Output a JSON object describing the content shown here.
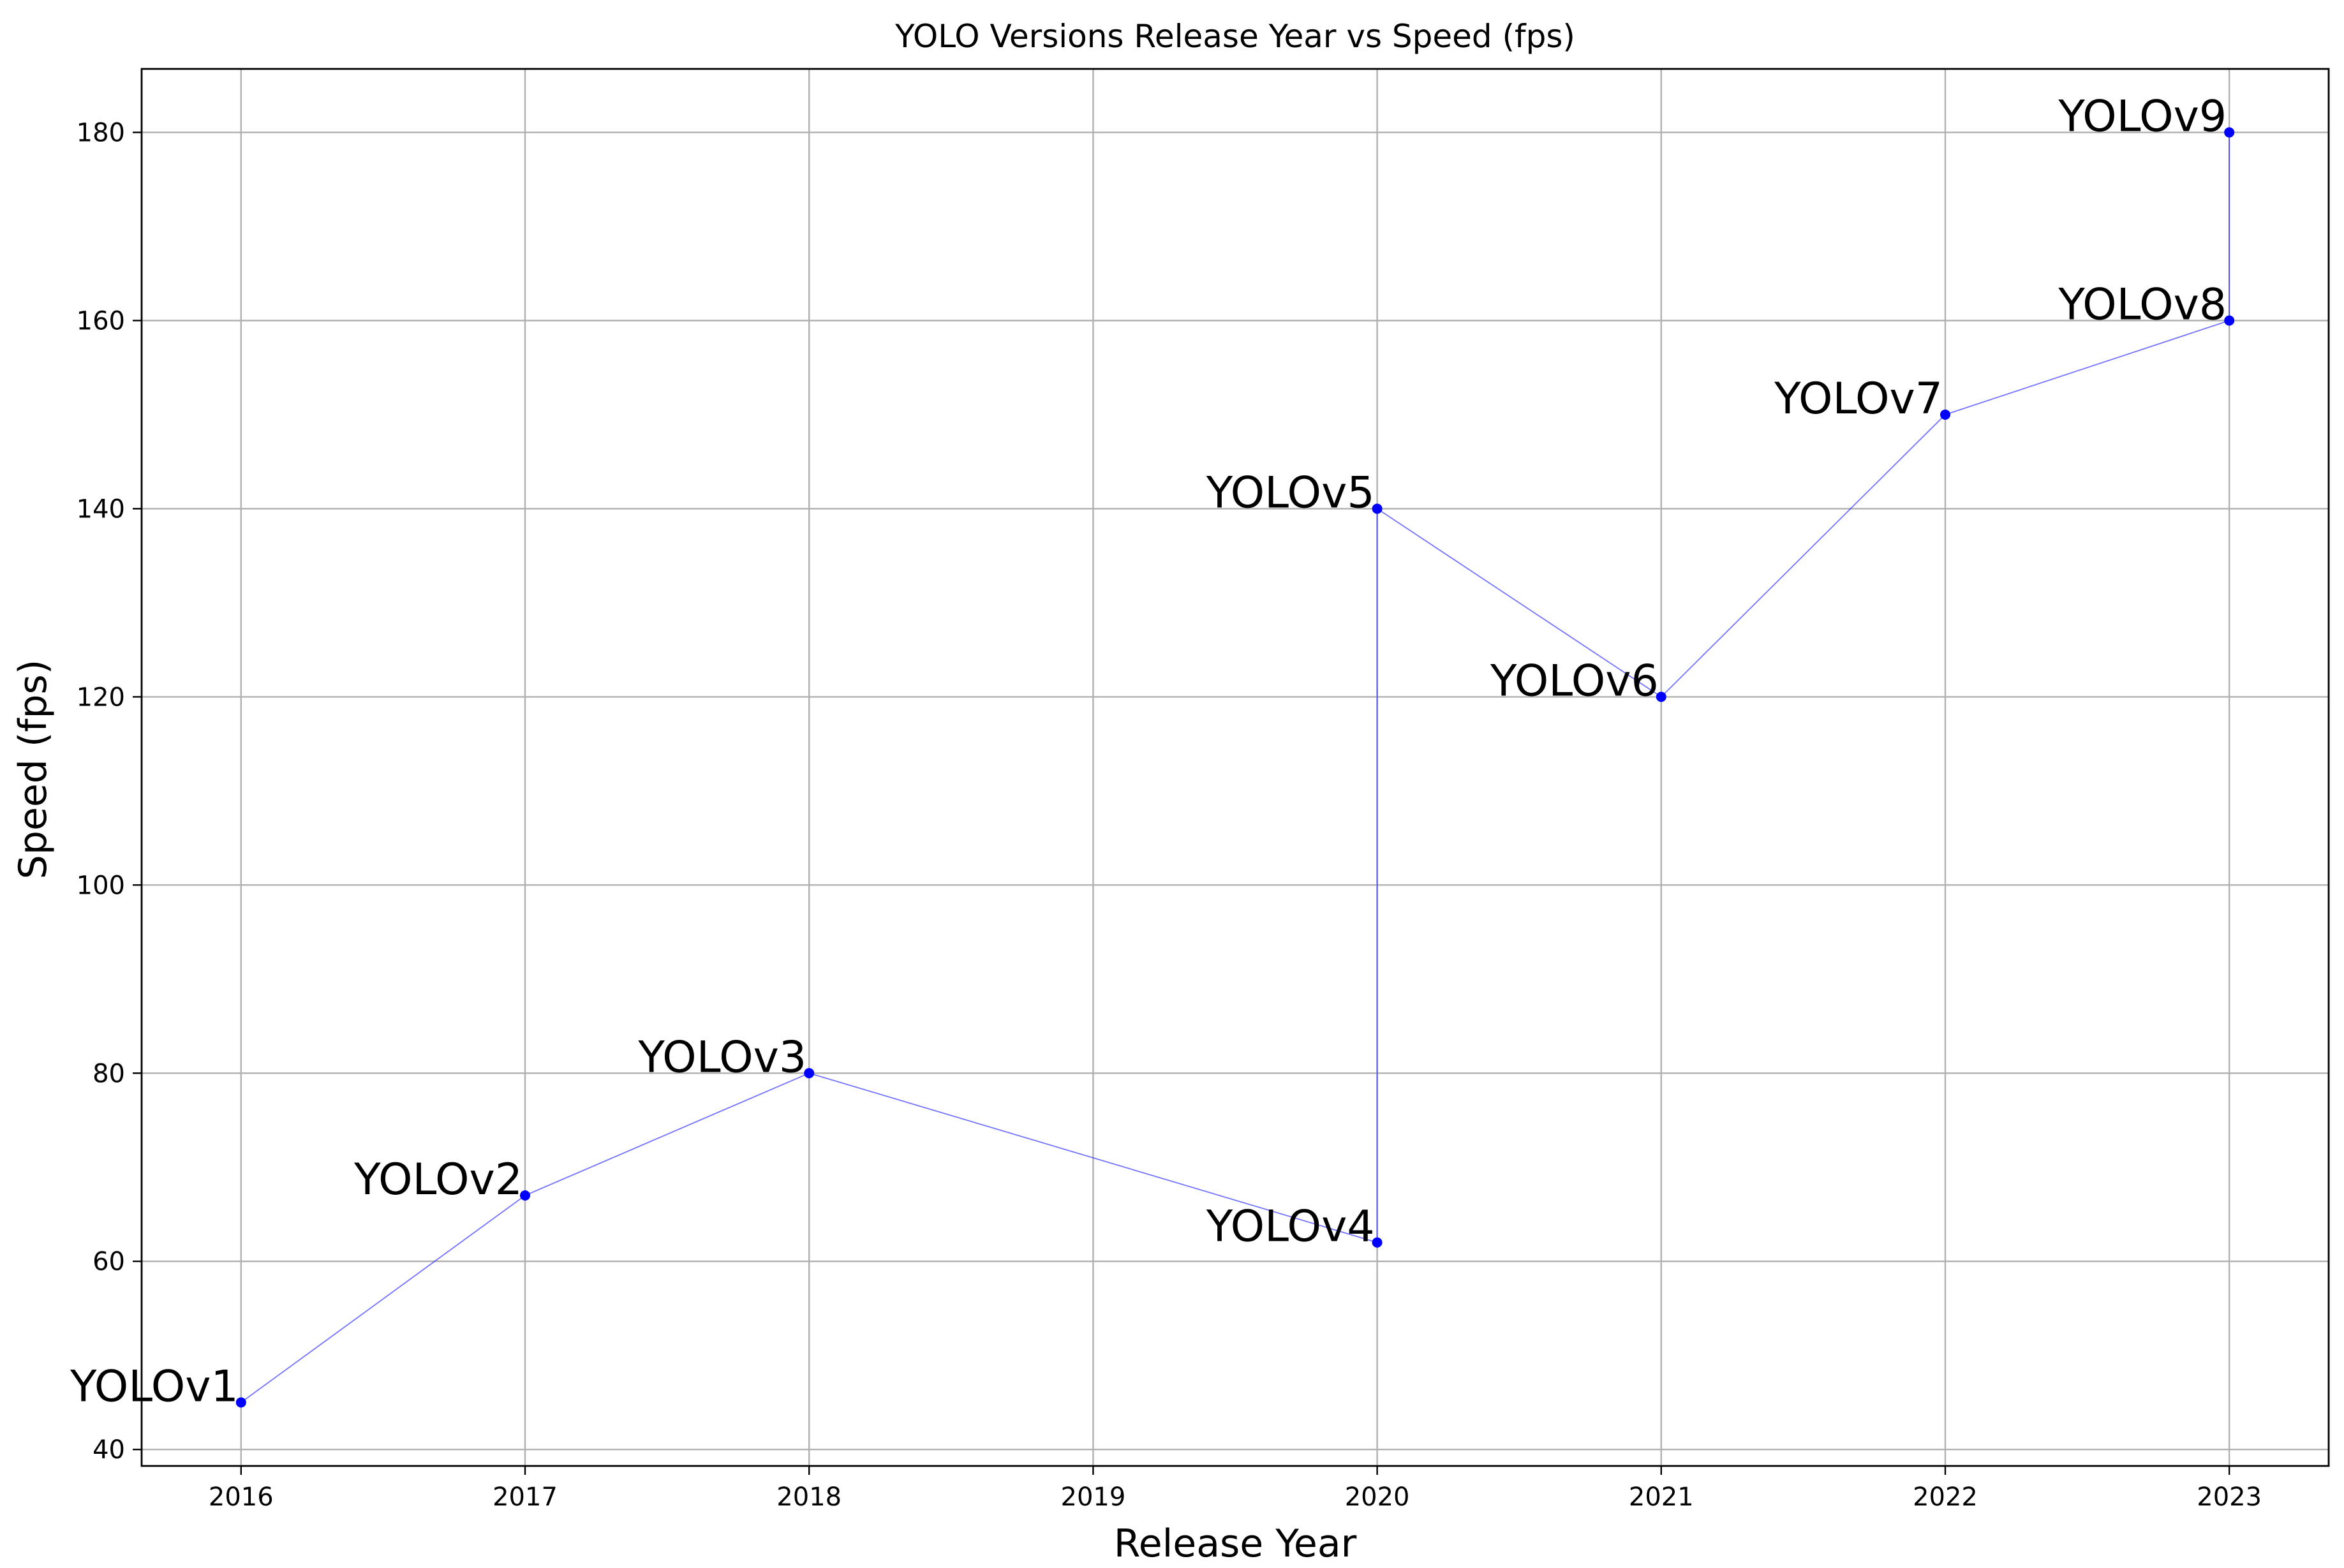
{
  "chart_data": {
    "type": "line",
    "title": "YOLO Versions Release Year vs Speed (fps)",
    "xlabel": "Release Year",
    "ylabel": "Speed (fps)",
    "xlim": [
      2015.65,
      2023.35
    ],
    "ylim": [
      38.25,
      186.75
    ],
    "x_ticks": [
      2016,
      2017,
      2018,
      2019,
      2020,
      2021,
      2022,
      2023
    ],
    "y_ticks": [
      40,
      60,
      80,
      100,
      120,
      140,
      160,
      180
    ],
    "grid": true,
    "line_color": "#0000ff",
    "marker_color": "#0000ff",
    "points": [
      {
        "label": "YOLOv1",
        "x": 2016,
        "y": 45
      },
      {
        "label": "YOLOv2",
        "x": 2017,
        "y": 67
      },
      {
        "label": "YOLOv3",
        "x": 2018,
        "y": 80
      },
      {
        "label": "YOLOv4",
        "x": 2020,
        "y": 62
      },
      {
        "label": "YOLOv5",
        "x": 2020,
        "y": 140
      },
      {
        "label": "YOLOv6",
        "x": 2021,
        "y": 120
      },
      {
        "label": "YOLOv7",
        "x": 2022,
        "y": 150
      },
      {
        "label": "YOLOv8",
        "x": 2023,
        "y": 160
      },
      {
        "label": "YOLOv9",
        "x": 2023,
        "y": 180
      }
    ]
  }
}
